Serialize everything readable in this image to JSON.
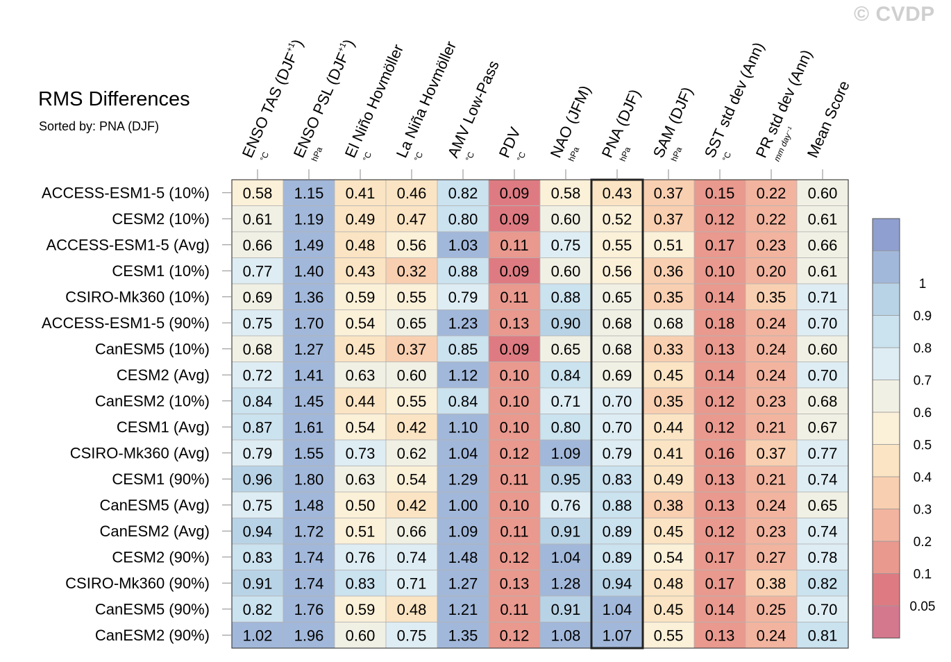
{
  "header": {
    "title": "RMS Differences",
    "sorted_by": "Sorted by: PNA (DJF)",
    "watermark": "© CVDP"
  },
  "chart_data": {
    "type": "heatmap",
    "columns": [
      {
        "label": "ENSO TAS (DJF",
        "sup": "+1",
        "close": ")",
        "unit": "°C"
      },
      {
        "label": "ENSO PSL (DJF",
        "sup": "+1",
        "close": ")",
        "unit": "hPa"
      },
      {
        "label": "El Niño Hovmöller",
        "sup": "",
        "close": "",
        "unit": "°C"
      },
      {
        "label": "La Niña Hovmöller",
        "sup": "",
        "close": "",
        "unit": "°C"
      },
      {
        "label": "AMV Low-Pass",
        "sup": "",
        "close": "",
        "unit": "°C"
      },
      {
        "label": "PDV",
        "sup": "",
        "close": "",
        "unit": "°C"
      },
      {
        "label": "NAO (JFM)",
        "sup": "",
        "close": "",
        "unit": "hPa"
      },
      {
        "label": "PNA (DJF)",
        "sup": "",
        "close": "",
        "unit": "hPa"
      },
      {
        "label": "SAM (DJF)",
        "sup": "",
        "close": "",
        "unit": "hPa"
      },
      {
        "label": "SST std dev (Ann)",
        "sup": "",
        "close": "",
        "unit": "°C"
      },
      {
        "label": "PR std dev (Ann)",
        "sup": "",
        "close": "",
        "unit": "mm day⁻¹"
      },
      {
        "label": "Mean Score",
        "sup": "",
        "close": "",
        "unit": ""
      }
    ],
    "rows": [
      "ACCESS-ESM1-5 (10%)",
      "CESM2 (10%)",
      "ACCESS-ESM1-5 (Avg)",
      "CESM1 (10%)",
      "CSIRO-Mk360 (10%)",
      "ACCESS-ESM1-5 (90%)",
      "CanESM5 (10%)",
      "CESM2 (Avg)",
      "CanESM2 (10%)",
      "CESM1 (Avg)",
      "CSIRO-Mk360 (Avg)",
      "CESM1 (90%)",
      "CanESM5 (Avg)",
      "CanESM2 (Avg)",
      "CESM2 (90%)",
      "CSIRO-Mk360 (90%)",
      "CanESM5 (90%)",
      "CanESM2 (90%)"
    ],
    "values": [
      [
        "0.58",
        "1.15",
        "0.41",
        "0.46",
        "0.82",
        "0.09",
        "0.58",
        "0.43",
        "0.37",
        "0.15",
        "0.22",
        "0.60"
      ],
      [
        "0.61",
        "1.19",
        "0.49",
        "0.47",
        "0.80",
        "0.09",
        "0.60",
        "0.52",
        "0.37",
        "0.12",
        "0.22",
        "0.61"
      ],
      [
        "0.66",
        "1.49",
        "0.48",
        "0.56",
        "1.03",
        "0.11",
        "0.75",
        "0.55",
        "0.51",
        "0.17",
        "0.23",
        "0.66"
      ],
      [
        "0.77",
        "1.40",
        "0.43",
        "0.32",
        "0.88",
        "0.09",
        "0.60",
        "0.56",
        "0.36",
        "0.10",
        "0.20",
        "0.61"
      ],
      [
        "0.69",
        "1.36",
        "0.59",
        "0.55",
        "0.79",
        "0.11",
        "0.88",
        "0.65",
        "0.35",
        "0.14",
        "0.35",
        "0.71"
      ],
      [
        "0.75",
        "1.70",
        "0.54",
        "0.65",
        "1.23",
        "0.13",
        "0.90",
        "0.68",
        "0.68",
        "0.18",
        "0.24",
        "0.70"
      ],
      [
        "0.68",
        "1.27",
        "0.45",
        "0.37",
        "0.85",
        "0.09",
        "0.65",
        "0.68",
        "0.33",
        "0.13",
        "0.24",
        "0.60"
      ],
      [
        "0.72",
        "1.41",
        "0.63",
        "0.60",
        "1.12",
        "0.10",
        "0.84",
        "0.69",
        "0.45",
        "0.14",
        "0.24",
        "0.70"
      ],
      [
        "0.84",
        "1.45",
        "0.44",
        "0.55",
        "0.84",
        "0.10",
        "0.71",
        "0.70",
        "0.35",
        "0.12",
        "0.23",
        "0.68"
      ],
      [
        "0.87",
        "1.61",
        "0.54",
        "0.42",
        "1.10",
        "0.10",
        "0.80",
        "0.70",
        "0.44",
        "0.12",
        "0.21",
        "0.67"
      ],
      [
        "0.79",
        "1.55",
        "0.73",
        "0.62",
        "1.04",
        "0.12",
        "1.09",
        "0.79",
        "0.41",
        "0.16",
        "0.37",
        "0.77"
      ],
      [
        "0.96",
        "1.80",
        "0.63",
        "0.54",
        "1.29",
        "0.11",
        "0.95",
        "0.83",
        "0.49",
        "0.13",
        "0.21",
        "0.74"
      ],
      [
        "0.75",
        "1.48",
        "0.50",
        "0.42",
        "1.00",
        "0.10",
        "0.76",
        "0.88",
        "0.38",
        "0.13",
        "0.24",
        "0.65"
      ],
      [
        "0.94",
        "1.72",
        "0.51",
        "0.66",
        "1.09",
        "0.11",
        "0.91",
        "0.89",
        "0.45",
        "0.12",
        "0.23",
        "0.74"
      ],
      [
        "0.83",
        "1.74",
        "0.76",
        "0.74",
        "1.48",
        "0.12",
        "1.04",
        "0.89",
        "0.54",
        "0.17",
        "0.27",
        "0.78"
      ],
      [
        "0.91",
        "1.74",
        "0.83",
        "0.71",
        "1.27",
        "0.13",
        "1.28",
        "0.94",
        "0.48",
        "0.17",
        "0.38",
        "0.82"
      ],
      [
        "0.82",
        "1.76",
        "0.59",
        "0.48",
        "1.21",
        "0.11",
        "0.91",
        "1.04",
        "0.45",
        "0.14",
        "0.25",
        "0.70"
      ],
      [
        "1.02",
        "1.96",
        "0.60",
        "0.75",
        "1.35",
        "0.12",
        "1.08",
        "1.07",
        "0.55",
        "0.13",
        "0.24",
        "0.81"
      ]
    ],
    "highlighted_column": "PNA (DJF)",
    "colorbar": {
      "levels": [
        "0.05",
        "0.1",
        "0.2",
        "0.3",
        "0.4",
        "0.5",
        "0.6",
        "0.7",
        "0.8",
        "0.9",
        "1"
      ],
      "colors": [
        "#d4788e",
        "#de7b82",
        "#e9998e",
        "#f2b49f",
        "#f8cfb0",
        "#fbe4c3",
        "#fbf0d8",
        "#f1f0e4",
        "#deedf3",
        "#cbe2ef",
        "#b9d3e6",
        "#a2b8da",
        "#8f9fcf"
      ]
    }
  }
}
